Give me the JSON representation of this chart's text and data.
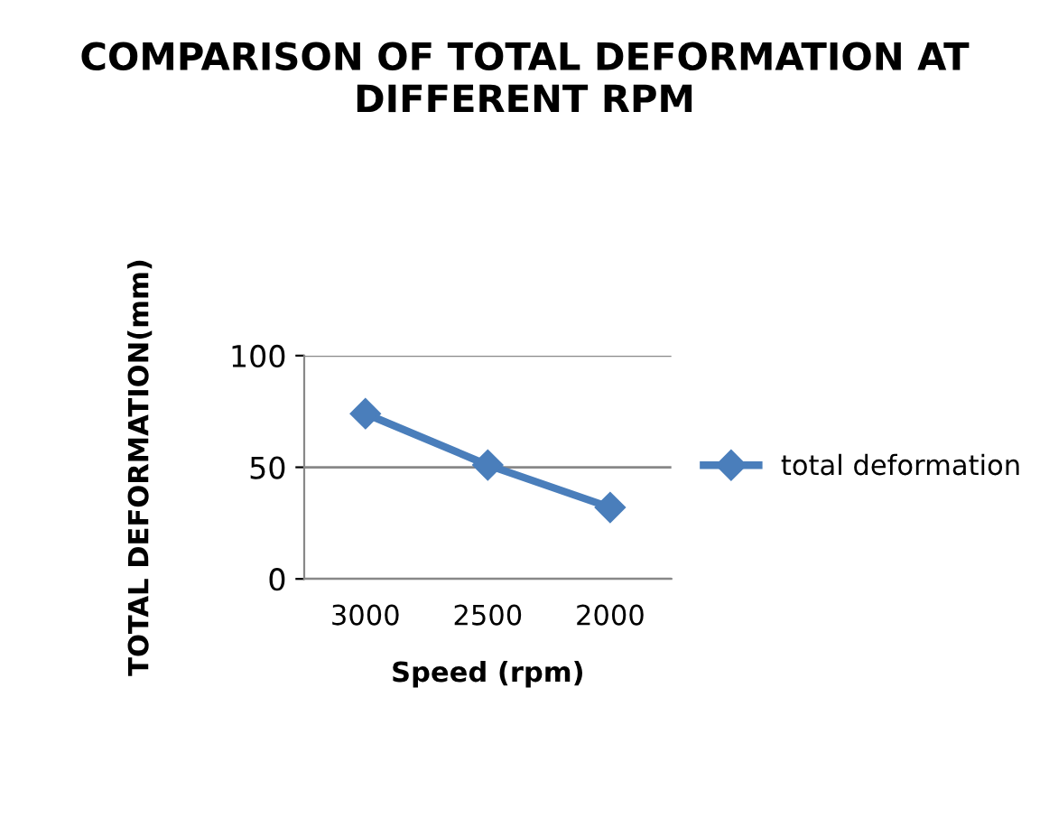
{
  "chart_data": {
    "type": "line",
    "title": "COMPARISON OF TOTAL DEFORMATION AT DIFFERENT RPM",
    "xlabel": "Speed (rpm)",
    "ylabel": "TOTAL DEFORMATION(mm)",
    "categories": [
      "3000",
      "2500",
      "2000"
    ],
    "series": [
      {
        "name": "total deformation",
        "color": "#4a7ebb",
        "values": [
          74,
          51,
          32
        ]
      }
    ],
    "ylim": [
      0,
      100
    ],
    "yticks": [
      0,
      50,
      100
    ],
    "grid": "y",
    "legend": "right",
    "marker": "diamond",
    "line_style": "solid"
  }
}
